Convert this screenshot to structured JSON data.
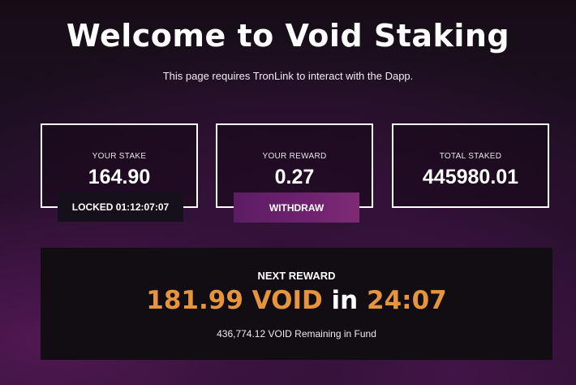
{
  "header": {
    "title": "Welcome to Void Staking",
    "subtitle": "This page requires TronLink to interact with the Dapp."
  },
  "stats": {
    "your_stake": {
      "label": "YOUR STAKE",
      "value": "164.90"
    },
    "your_reward": {
      "label": "YOUR REWARD",
      "value": "0.27"
    },
    "total_staked": {
      "label": "TOTAL STAKED",
      "value": "445980.01"
    }
  },
  "lock": {
    "text": "LOCKED 01:12:07:07"
  },
  "actions": {
    "withdraw_label": "WITHDRAW"
  },
  "next_reward": {
    "label": "NEXT REWARD",
    "amount": "181.99 VOID",
    "in_word": "in",
    "countdown": "24:07",
    "remaining": "436,774.12 VOID Remaining in Fund"
  },
  "colors": {
    "accent_orange": "#e7953c",
    "button_purple": "#6e2170",
    "panel_dark": "#120c13"
  }
}
